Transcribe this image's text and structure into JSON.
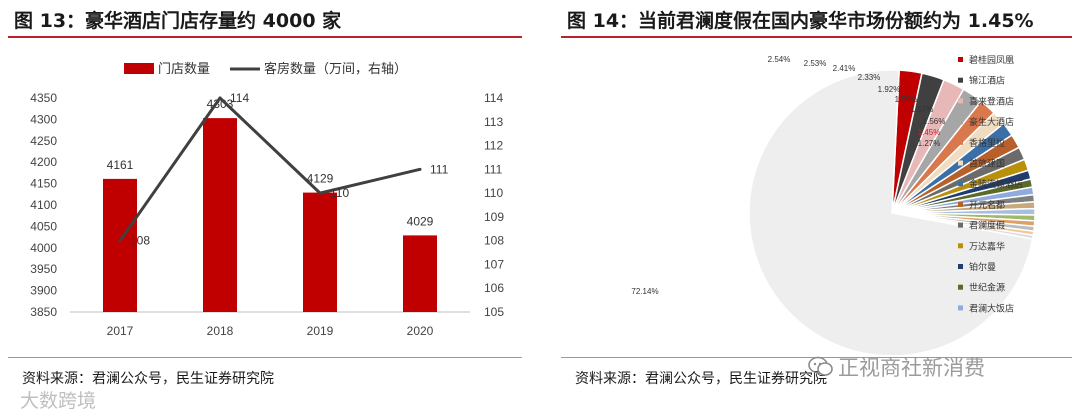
{
  "left": {
    "title": "图 13：豪华酒店门店存量约 4000 家",
    "source": "资料来源：君澜公众号，民生证券研究院"
  },
  "right": {
    "title": "图 14：当前君澜度假在国内豪华市场份额约为 1.45%",
    "source": "资料来源：君澜公众号，民生证券研究院"
  },
  "watermark": "正视商社新消费",
  "watermark2": "大数跨境",
  "colors": {
    "bar": "#c00000",
    "line": "#404040",
    "rule": "#b8222b",
    "highlight": "#c8202a"
  },
  "chart_data": [
    {
      "type": "bar",
      "title": "图 13：豪华酒店门店存量约 4000 家",
      "categories": [
        "2017",
        "2018",
        "2019",
        "2020"
      ],
      "series": [
        {
          "name": "门店数量",
          "type": "bar",
          "axis": "left",
          "values": [
            4161,
            4303,
            4129,
            4029
          ]
        },
        {
          "name": "客房数量（万间，右轴）",
          "type": "line",
          "axis": "right",
          "values": [
            108,
            114,
            110,
            111
          ],
          "label_text": [
            "108",
            "114",
            "110",
            "111"
          ]
        }
      ],
      "y_left": {
        "min": 3850,
        "max": 4350,
        "step": 50
      },
      "y_right": {
        "min": 105,
        "max": 114,
        "step": 1
      },
      "legend": "top",
      "grid": false
    },
    {
      "type": "pie",
      "title": "图 14：当前君澜度假在国内豪华市场份额约为 1.45%",
      "slices": [
        {
          "name": "碧桂园凤凰",
          "value": 2.54,
          "label": "2.54%",
          "color": "#c00000"
        },
        {
          "name": "锦江酒店",
          "value": 2.53,
          "label": "2.53%",
          "color": "#404040"
        },
        {
          "name": "喜来登酒店",
          "value": 2.41,
          "label": "2.41%",
          "color": "#e8b8b8"
        },
        {
          "name": "豪生大酒店",
          "value": 2.33,
          "label": "2.33%",
          "color": "#a6a6a6"
        },
        {
          "name": "香格里拉",
          "value": 1.92,
          "label": "1.92%",
          "color": "#d9784c"
        },
        {
          "name": "首旅建国",
          "value": 1.59,
          "label": "1.59%",
          "color": "#f0dcc0"
        },
        {
          "name": "金陵连锁酒店",
          "value": 1.57,
          "label": "1.57%",
          "color": "#3a6fa8"
        },
        {
          "name": "开元名都",
          "value": 1.56,
          "label": "1.56%",
          "color": "#b8602a"
        },
        {
          "name": "君澜度假",
          "value": 1.45,
          "label": "1.45%",
          "color": "#6b6b6b"
        },
        {
          "name": "万达嘉华",
          "value": 1.27,
          "label": "1.27%",
          "color": "#b8900c"
        },
        {
          "name": "铂尔曼",
          "value": 1.0,
          "label": "",
          "color": "#203c70"
        },
        {
          "name": "世纪金源",
          "value": 0.9,
          "label": "",
          "color": "#5a6a2a"
        },
        {
          "name": "君澜大饭店",
          "value": 0.85,
          "label": "",
          "color": "#8faadc"
        },
        {
          "name": "",
          "value": 0.8,
          "label": "",
          "color": "#7f7f7f"
        },
        {
          "name": "",
          "value": 0.75,
          "label": "",
          "color": "#c9a87a"
        },
        {
          "name": "",
          "value": 0.7,
          "label": "",
          "color": "#a6bfe0"
        },
        {
          "name": "",
          "value": 0.65,
          "label": "",
          "color": "#9fba6a"
        },
        {
          "name": "",
          "value": 0.6,
          "label": "",
          "color": "#dca06a"
        },
        {
          "name": "",
          "value": 0.55,
          "label": "",
          "color": "#bdbdbd"
        },
        {
          "name": "",
          "value": 0.45,
          "label": "",
          "color": "#f2c7a0"
        },
        {
          "name": "",
          "value": 0.41,
          "label": "",
          "color": "#dcdcdc"
        },
        {
          "name": "",
          "value": 72.14,
          "label": "72.14%",
          "color": "#eeeeee"
        }
      ],
      "legend": "right"
    }
  ]
}
